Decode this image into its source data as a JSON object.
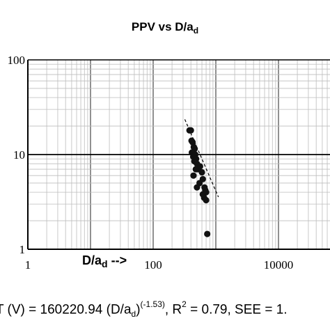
{
  "chart_data": {
    "type": "scatter",
    "title": {
      "main": "PPV vs D/a",
      "subscript": "d"
    },
    "xlabel": {
      "main": "D/a",
      "subscript": "d",
      "suffix": " -->"
    },
    "ylabel": "",
    "x_scale": "log",
    "y_scale": "log",
    "xlim": [
      1,
      100000
    ],
    "ylim": [
      1,
      100
    ],
    "x_ticks": [
      "1",
      "100",
      "10000"
    ],
    "y_ticks": [
      "1",
      "10",
      "100"
    ],
    "grid": true,
    "legend": "none",
    "series": [
      {
        "points": [
          [
            380,
            18.0
          ],
          [
            400,
            18.0
          ],
          [
            410,
            14.0
          ],
          [
            425,
            13.5
          ],
          [
            445,
            12.0
          ],
          [
            460,
            11.5
          ],
          [
            415,
            10.5
          ],
          [
            435,
            9.5
          ],
          [
            455,
            8.5
          ],
          [
            470,
            10.0
          ],
          [
            485,
            9.0
          ],
          [
            500,
            8.0
          ],
          [
            520,
            7.0
          ],
          [
            560,
            7.5
          ],
          [
            600,
            6.5
          ],
          [
            440,
            6.0
          ],
          [
            480,
            7.0
          ],
          [
            550,
            5.0
          ],
          [
            500,
            4.5
          ],
          [
            620,
            5.5
          ],
          [
            660,
            4.5
          ],
          [
            680,
            4.2
          ],
          [
            700,
            4.0
          ],
          [
            620,
            3.8
          ],
          [
            650,
            3.5
          ],
          [
            700,
            3.3
          ],
          [
            730,
            1.45
          ]
        ]
      }
    ],
    "trendline": {
      "type": "power",
      "x_range": [
        320,
        1100
      ],
      "color": "#000000",
      "style": "dashed"
    },
    "colors": {
      "points": "#111111",
      "grid": "#bdbdbd",
      "axis": "#000000"
    }
  },
  "equation": {
    "lead": "T (V) = 160220.94 (D/a",
    "sub": "d",
    "close": ")",
    "exp": "(-1.53)",
    "tail": ", R",
    "r2_sup": "2",
    "rest": " = 0.79, SEE = 1."
  }
}
